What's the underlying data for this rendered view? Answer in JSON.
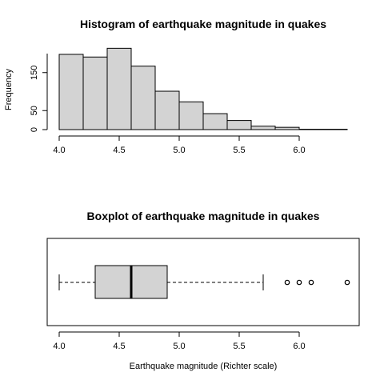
{
  "chart_data": [
    {
      "type": "bar",
      "title": "Histogram of earthquake magnitude in quakes",
      "ylabel": "Frequency",
      "xlabel": "",
      "bin_edges": [
        4.0,
        4.2,
        4.4,
        4.6,
        4.8,
        5.0,
        5.2,
        5.4,
        5.6,
        5.8,
        6.0,
        6.2,
        6.4
      ],
      "values": [
        198,
        191,
        214,
        167,
        101,
        73,
        42,
        24,
        9,
        6,
        1,
        1
      ],
      "xlim": [
        4.0,
        6.4
      ],
      "ylim": [
        0,
        214
      ],
      "xticks": [
        "4.0",
        "4.5",
        "5.0",
        "5.5",
        "6.0"
      ],
      "yticks": [
        "0",
        "50",
        "150"
      ],
      "bar_fill": "#d3d3d3",
      "bar_stroke": "#000000"
    },
    {
      "type": "boxplot",
      "orientation": "horizontal",
      "title": "Boxplot of earthquake magnitude in quakes",
      "xlabel": "Earthquake magnitude (Richter scale)",
      "whisker_low": 4.0,
      "q1": 4.3,
      "median": 4.6,
      "q3": 4.9,
      "whisker_high": 5.7,
      "outliers": [
        5.9,
        6.0,
        6.1,
        6.4
      ],
      "xlim": [
        4.0,
        6.4
      ],
      "xticks": [
        "4.0",
        "4.5",
        "5.0",
        "5.5",
        "6.0"
      ],
      "box_fill": "#d3d3d3",
      "box_stroke": "#000000"
    }
  ]
}
